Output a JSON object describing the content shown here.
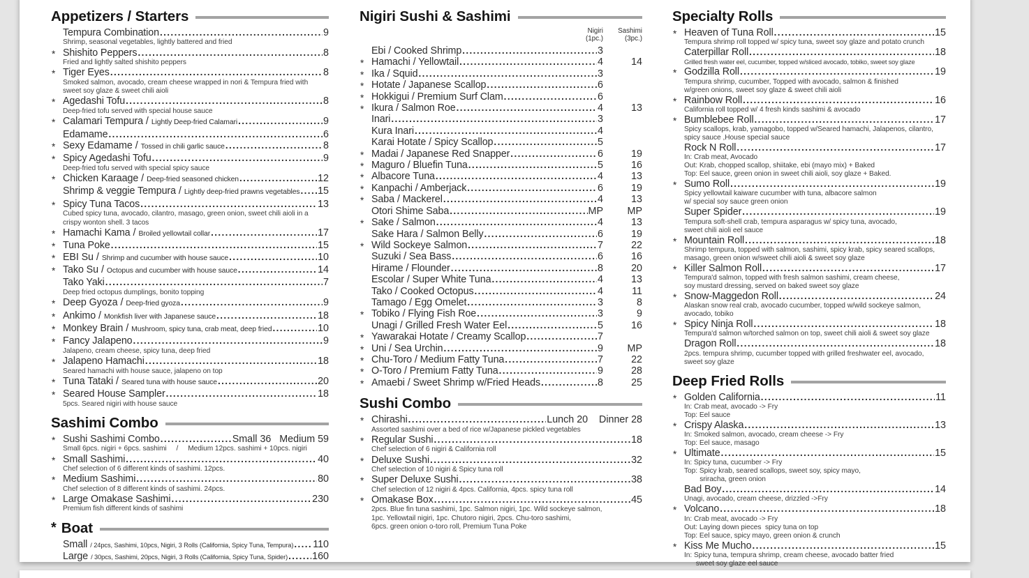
{
  "page": {
    "background": "#e5e5e5",
    "paper_color": "#ffffff",
    "rule_color": "#a3a3a3",
    "text_color": "#2d2d2d"
  },
  "columns": [
    {
      "sections": [
        {
          "title": "Appetizers / Starters",
          "items": [
            {
              "star": false,
              "name": "Tempura Combination",
              "price": "9",
              "desc": [
                "Shrimp, seasonal vegetables, lightly battered and fried"
              ]
            },
            {
              "star": true,
              "name": "Shishito Peppers",
              "price": "8",
              "desc": [
                "Fried and lightly salted shishito peppers"
              ]
            },
            {
              "star": true,
              "name": "Tiger Eyes",
              "price": "8",
              "desc": [
                "Smoked salmon, avocado, cream cheese wrapped in nori & Tempura fried with",
                "sweet soy glaze & sweet chili aioli"
              ]
            },
            {
              "star": true,
              "name": "Agedashi Tofu",
              "price": "8",
              "desc": [
                "Deep-fried tofu served with special house sauce"
              ]
            },
            {
              "star": true,
              "name": "Calamari Tempura",
              "sub": "Lightly Deep-fried Calamari",
              "price": "9"
            },
            {
              "star": false,
              "name": "Edamame",
              "price": "6"
            },
            {
              "star": true,
              "name": "Sexy Edamame",
              "sub": "Tossed in chili garlic sauce",
              "price": "8"
            },
            {
              "star": true,
              "name": "Spicy Agedashi Tofu",
              "price": "9",
              "desc": [
                "Deep-fried tofu served with special spicy sauce"
              ]
            },
            {
              "star": true,
              "name": "Chicken Karaage",
              "sub": "Deep-fried seasoned chicken",
              "price": "12"
            },
            {
              "star": false,
              "name": "Shrimp & veggie Tempura",
              "sub": "Lightly deep-fried prawns vegetables",
              "price": "15"
            },
            {
              "star": true,
              "name": "Spicy Tuna Tacos",
              "price": "13",
              "desc": [
                "Cubed spicy tuna, avocado, cilantro, masago, green onion, sweet chili aioli in a",
                "crispy wonton shell. 3 tacos"
              ]
            },
            {
              "star": true,
              "name": "Hamachi Kama",
              "sub": "Broiled yellowtail collar",
              "price": "17"
            },
            {
              "star": true,
              "name": "Tuna Poke",
              "price": "15"
            },
            {
              "star": true,
              "name": "EBI Su",
              "sub": "Shrimp and cucumber with house sauce",
              "price": "10"
            },
            {
              "star": true,
              "name": "Tako Su",
              "sub": "Octopus and cucumber with house sauce",
              "price": "14"
            },
            {
              "star": false,
              "name": "Tako Yaki",
              "price": "7",
              "desc": [
                "Deep fried octopus dumplings, bonito topping"
              ]
            },
            {
              "star": true,
              "name": "Deep Gyoza",
              "sub": "Deep-fried gyoza",
              "price": "9"
            },
            {
              "star": true,
              "name": "Ankimo",
              "sub": "Monkfish liver with Japanese sauce",
              "price": "18"
            },
            {
              "star": true,
              "name": "Monkey Brain",
              "sub": "Mushroom, spicy tuna, crab meat, deep fried",
              "price": "10"
            },
            {
              "star": true,
              "name": "Fancy Jalapeno",
              "price": "9",
              "desc": [
                "Jalapeno, cream cheese, spicy tuna, deep fried"
              ]
            },
            {
              "star": true,
              "name": "Jalapeno Hamachi",
              "price": "18",
              "desc": [
                "Seared hamachi with house sauce, jalapeno on top"
              ]
            },
            {
              "star": true,
              "name": "Tuna Tataki",
              "sub": "Seared tuna with house sauce",
              "price": "20"
            },
            {
              "star": true,
              "name": "Seared House Sampler",
              "price": "18",
              "desc": [
                "5pcs. Seared nigiri with house sauce"
              ]
            }
          ]
        },
        {
          "title": "Sashimi Combo",
          "items": [
            {
              "star": true,
              "name": "Sushi Sashimi Combo",
              "price": "Small 36   Medium 59",
              "desc": [
                "Small 6pcs. nigiri + 6pcs. sashimi     /     Medium 12pcs. sashimi + 10pcs. nigiri"
              ]
            },
            {
              "star": true,
              "name": "Small Sashimi",
              "price": "40",
              "desc": [
                "Chef selection of 6 different kinds of sashimi. 12pcs."
              ]
            },
            {
              "star": true,
              "name": "Medium Sashimi",
              "price": "80",
              "desc": [
                "Chef selection of 8 different kinds of sashimi. 24pcs."
              ]
            },
            {
              "star": true,
              "name": "Large Omakase Sashimi",
              "price": "230",
              "desc": [
                "Premium fish different kinds of sashimi"
              ]
            }
          ]
        },
        {
          "title": "Boat",
          "star": true,
          "items": [
            {
              "star": false,
              "name": "Small",
              "sub": "/ 24pcs, Sashimi, 10pcs, Nigiri, 3 Rolls (California, Spicy Tuna, Tempura)",
              "sub_prefixed": true,
              "sub_small": true,
              "price": "110"
            },
            {
              "star": false,
              "name": "Large",
              "sub": "/ 30pcs, Sashimi, 20pcs, Nigiri, 3 Rolls (California, Spicy Tuna, Spider)",
              "sub_prefixed": true,
              "sub_small": true,
              "price": "160"
            }
          ]
        }
      ]
    },
    {
      "sections": [
        {
          "title": "Nigiri Sushi & Sashimi",
          "two_price": true,
          "price_headers": {
            "c1": "Nigiri",
            "c1b": "(1pc.)",
            "c2": "Sashimi",
            "c2b": "(3pc.)"
          },
          "items": [
            {
              "star": false,
              "name": "Ebi / Cooked Shrimp",
              "p1": "3",
              "p2": ""
            },
            {
              "star": true,
              "name": "Hamachi / Yellowtail",
              "p1": "4",
              "p2": "14"
            },
            {
              "star": true,
              "name": "Ika / Squid",
              "p1": "3",
              "p2": ""
            },
            {
              "star": true,
              "name": "Hotate / Japanese Scallop",
              "p1": "6",
              "p2": ""
            },
            {
              "star": true,
              "name": "Hokkigui / Premium Surf Clam",
              "p1": "6",
              "p2": ""
            },
            {
              "star": true,
              "name": "Ikura / Salmon Roe",
              "p1": "4",
              "p2": "13"
            },
            {
              "star": false,
              "name": "Inari",
              "p1": "3",
              "p2": ""
            },
            {
              "star": false,
              "name": "Kura Inari",
              "p1": "4",
              "p2": ""
            },
            {
              "star": false,
              "name": "Karai Hotate / Spicy Scallop",
              "p1": "5",
              "p2": ""
            },
            {
              "star": true,
              "name": "Madai / Japanese Red Snapper",
              "p1": "6",
              "p2": "19"
            },
            {
              "star": true,
              "name": "Maguro / Bluefin Tuna",
              "p1": "5",
              "p2": "16"
            },
            {
              "star": true,
              "name": "Albacore Tuna",
              "p1": "4",
              "p2": "13"
            },
            {
              "star": true,
              "name": "Kanpachi / Amberjack",
              "p1": "6",
              "p2": "19"
            },
            {
              "star": true,
              "name": "Saba / Mackerel",
              "p1": "4",
              "p2": "13"
            },
            {
              "star": false,
              "name": "Otori Shime Saba",
              "p1": "MP",
              "p2": "MP"
            },
            {
              "star": true,
              "name": "Sake / Salmon",
              "p1": "4",
              "p2": "13"
            },
            {
              "star": false,
              "name": "Sake Hara / Salmon Belly",
              "p1": "6",
              "p2": "19"
            },
            {
              "star": true,
              "name": "Wild Sockeye Salmon",
              "p1": "7",
              "p2": "22"
            },
            {
              "star": false,
              "name": "Suzuki / Sea Bass",
              "p1": "6",
              "p2": "16"
            },
            {
              "star": false,
              "name": "Hirame / Flounder",
              "p1": "8",
              "p2": "20"
            },
            {
              "star": false,
              "name": "Escolar / Super White Tuna",
              "p1": "4",
              "p2": "13"
            },
            {
              "star": false,
              "name": "Tako / Cooked Octopus",
              "p1": "4",
              "p2": "11"
            },
            {
              "star": false,
              "name": "Tamago / Egg Omelet",
              "p1": "3",
              "p2": "8"
            },
            {
              "star": true,
              "name": "Tobiko / Flying Fish Roe",
              "p1": "3",
              "p2": "9"
            },
            {
              "star": false,
              "name": "Unagi / Grilled Fresh Water Eel",
              "p1": "5",
              "p2": "16"
            },
            {
              "star": true,
              "name": "Yawarakai Hotate / Creamy Scallop",
              "p1": "7",
              "p2": ""
            },
            {
              "star": true,
              "name": "Uni / Sea Urchin",
              "p1": "9",
              "p2": "MP"
            },
            {
              "star": true,
              "name": "Chu-Toro / Medium Fatty Tuna",
              "p1": "7",
              "p2": "22"
            },
            {
              "star": true,
              "name": "O-Toro / Premium Fatty Tuna",
              "p1": "9",
              "p2": "28"
            },
            {
              "star": true,
              "name": "Amaebi / Sweet Shrimp w/Fried Heads",
              "p1": "8",
              "p2": "25"
            }
          ]
        },
        {
          "title": "Sushi Combo",
          "items": [
            {
              "star": true,
              "name": "Chirashi",
              "price": "Lunch 20    Dinner 28",
              "desc": [
                "Assorted sashimi over a bed of rice w/Japanese pickled vegetables"
              ]
            },
            {
              "star": true,
              "name": "Regular Sushi",
              "price": "18",
              "desc": [
                "Chef selection of 6 nigiri & California roll"
              ]
            },
            {
              "star": true,
              "name": "Deluxe Sushi",
              "price": "32",
              "desc": [
                "Chef selection of 10 nigiri & Spicy tuna roll"
              ]
            },
            {
              "star": true,
              "name": "Super Deluxe Sushi",
              "price": "38",
              "desc": [
                "Chef selection of 12 nigiri & 4pcs. California, 4pcs. spicy tuna roll"
              ]
            },
            {
              "star": true,
              "name": "Omakase Box",
              "price": "45",
              "desc": [
                "2pcs. Blue fin tuna sashimi, 1pc. Salmon nigiri, 1pc. Wild sockeye salmon,",
                "1pc. Yellowtail nigiri, 1pc. Chutoro nigiri, 2pcs. Chu-toro sashimi,",
                "6pcs. green onion o-toro roll, Premium Tuna Poke"
              ]
            }
          ]
        }
      ]
    },
    {
      "sections": [
        {
          "title": "Specialty Rolls",
          "items": [
            {
              "star": true,
              "name": "Heaven of Tuna Roll",
              "price": "15",
              "desc": [
                "Tempura shrimp roll topped w/ spicy tuna, sweet soy glaze and potato crunch"
              ]
            },
            {
              "star": false,
              "name": "Caterpillar Roll",
              "price": "18",
              "tight": true,
              "desc": [
                "Grilled fresh water eel, cucumber, topped w/sliced avocado, tobiko, sweet soy glaze"
              ]
            },
            {
              "star": true,
              "name": "Godzilla Roll",
              "price": "19",
              "desc": [
                "Tempura shrimp, cucumber, Topped with avocado, salmon & finished",
                "w/green onions, sweet soy glaze & sweet chili aioli"
              ]
            },
            {
              "star": true,
              "name": "Rainbow Roll",
              "price": "16",
              "desc": [
                "California roll topped w/ 4 fresh kinds sashimi & avocado"
              ]
            },
            {
              "star": true,
              "name": "Bumblebee Roll",
              "price": "17",
              "desc": [
                "Spicy scallops, krab, yamagobo, topped w/Seared hamachi, Jalapenos, cilantro,",
                "spicy sauce ,House special sauce"
              ]
            },
            {
              "star": false,
              "name": "Rock N Roll",
              "price": "17",
              "desc": [
                "In: Crab meat, Avocado",
                "Out: Krab, chopped scallop, shiitake, ebi (mayo mix) + Baked",
                "Top: Eel sauce, green onion in sweet chili aioli, soy glaze + Baked."
              ]
            },
            {
              "star": true,
              "name": "Sumo Roll",
              "price": "19",
              "desc": [
                "Spicy yellowtail kaiware cucumber with tuna, albacore salmon",
                "w/ special soy sauce green onion"
              ]
            },
            {
              "star": false,
              "name": "Super Spider",
              "price": "19",
              "desc": [
                "Tempura soft-shell crab, tempura asparagus w/ spicy tuna, avocado,",
                "sweet chili aioli eel sauce"
              ]
            },
            {
              "star": true,
              "name": "Mountain Roll",
              "price": "18",
              "desc": [
                "Shrimp tempura, topped with salmon, sashimi, spicy krab, spicy seared scallops,",
                "masago, green onion w/sweet chili aioli & sweet soy glaze"
              ]
            },
            {
              "star": true,
              "name": "Killer Salmon Roll",
              "price": "17",
              "desc": [
                "Tempura'd salmon, topped with fresh salmon sashimi, cream cheese,",
                "soy mustard dressing, served on baked sweet soy glaze"
              ]
            },
            {
              "star": true,
              "name": "Snow-Maggedon Roll",
              "price": "24",
              "desc": [
                "Alaskan snow real crab, avocado cucumber, topped w/wild sockeye salmon,",
                "avocado, tobiko"
              ]
            },
            {
              "star": true,
              "name": "Spicy Ninja Roll",
              "price": "18",
              "desc": [
                "Tempura'd salmon w/torched salmon on top, sweet chili aioli & sweet soy glaze"
              ]
            },
            {
              "star": false,
              "name": "Dragon Roll",
              "price": "18",
              "desc": [
                "2pcs. tempura shrimp, cucumber topped with grilled freshwater eel, avocado,",
                "sweet soy glaze"
              ]
            }
          ]
        },
        {
          "title": "Deep Fried Rolls",
          "items": [
            {
              "star": true,
              "name": "Golden California",
              "price": "11",
              "desc": [
                "In: Crab meat, avocado -> Fry",
                "Top: Eel sauce"
              ]
            },
            {
              "star": true,
              "name": "Crispy Alaska",
              "price": "13",
              "desc": [
                "In: Smoked salmon, avocado, cream cheese -> Fry",
                "Top: Eel sauce, masago"
              ]
            },
            {
              "star": true,
              "name": "Ultimate",
              "price": "15",
              "desc": [
                "In: Spicy tuna, cucumber -> Fry",
                "Top: Spicy krab, seared scallops, sweet soy, spicy mayo,",
                "        sriracha, green onion"
              ]
            },
            {
              "star": false,
              "name": "Bad Boy",
              "price": "14",
              "desc": [
                "Unagi, avocado, cream cheese, drizzled ->Fry"
              ]
            },
            {
              "star": true,
              "name": "Volcano",
              "price": "18",
              "desc": [
                "In: Crab meat, avocado -> Fry",
                "Out: Laying down pieces  spicy tuna on top",
                "Top: Eel sauce, spicy mayo, green onion & crunch"
              ]
            },
            {
              "star": true,
              "name": "Kiss Me Mucho",
              "price": "15",
              "desc": [
                "In: Spicy tuna, tempura shrimp, cream cheese, avocado batter fried",
                "      sweet soy glaze eel sauce"
              ]
            }
          ]
        }
      ]
    }
  ]
}
